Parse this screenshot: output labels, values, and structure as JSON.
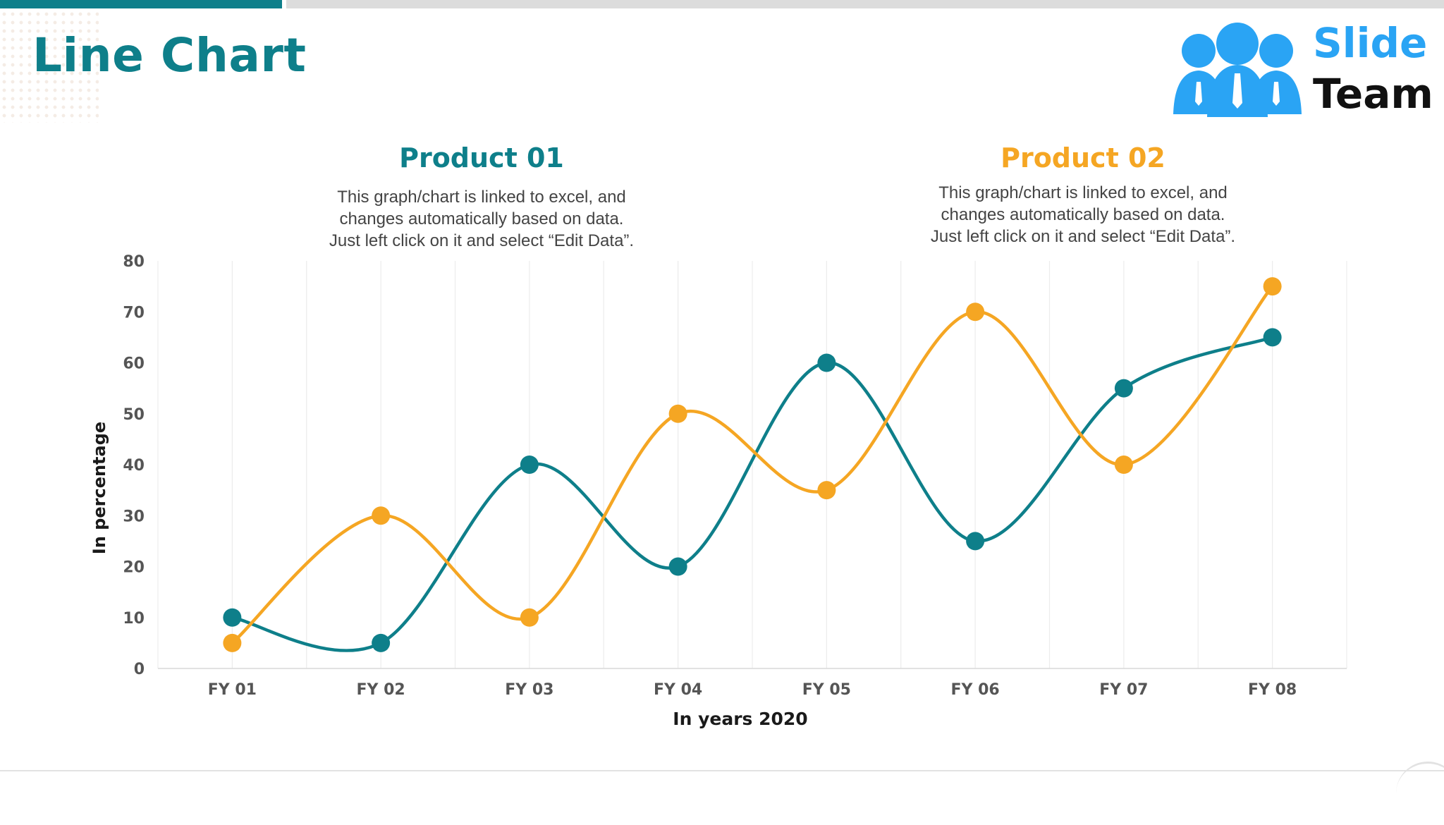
{
  "title": "Line Chart",
  "logo": {
    "line1": "Slide",
    "line2": "Team"
  },
  "product1": {
    "title": "Product 01",
    "desc": [
      "This graph/chart is linked to excel, and",
      "changes automatically based on data.",
      "Just left click on it and select “Edit Data”."
    ]
  },
  "product2": {
    "title": "Product 02",
    "desc": [
      "This graph/chart is linked to excel, and",
      "changes automatically based on data.",
      "Just left click on it and select “Edit Data”."
    ]
  },
  "colors": {
    "teal": "#0e7f8a",
    "orange": "#f5a623",
    "grid": "#ececec"
  },
  "chart_data": {
    "type": "line",
    "title": "",
    "xlabel": "In years 2020",
    "ylabel": "In percentage",
    "categories": [
      "FY 01",
      "FY 02",
      "FY 03",
      "FY 04",
      "FY 05",
      "FY 06",
      "FY 07",
      "FY 08"
    ],
    "ylim": [
      0,
      80
    ],
    "yticks": [
      0,
      10,
      20,
      30,
      40,
      50,
      60,
      70,
      80
    ],
    "grid": true,
    "smooth": true,
    "series": [
      {
        "name": "Product 01",
        "color": "#0e7f8a",
        "values": [
          10,
          5,
          40,
          20,
          60,
          25,
          55,
          65
        ]
      },
      {
        "name": "Product 02",
        "color": "#f5a623",
        "values": [
          5,
          30,
          10,
          50,
          35,
          70,
          40,
          75
        ]
      }
    ]
  }
}
